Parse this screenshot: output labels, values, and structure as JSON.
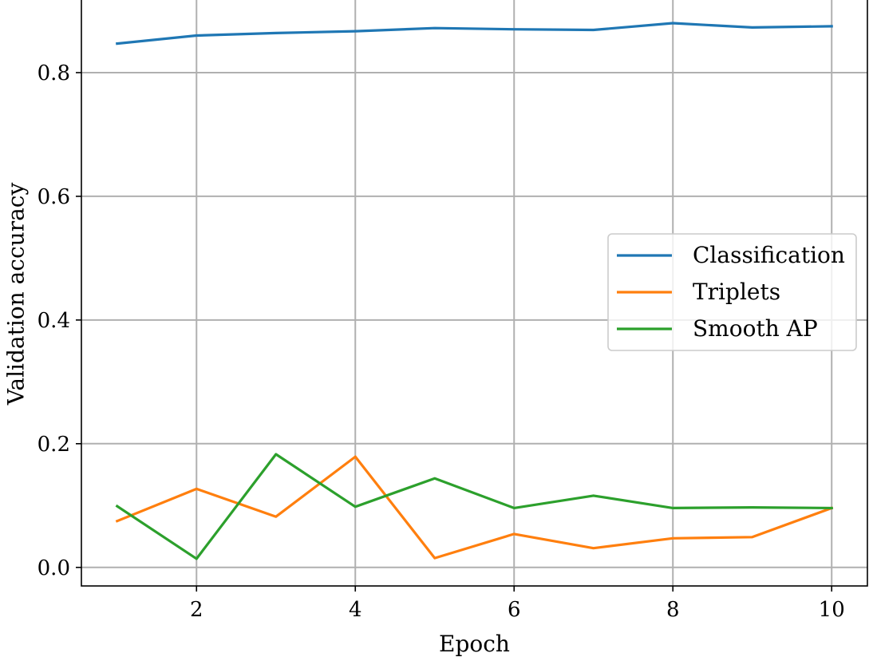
{
  "chart_data": {
    "type": "line",
    "title": "",
    "xlabel": "Epoch",
    "ylabel": "Validation accuracy",
    "xlim": [
      0.55,
      10.45
    ],
    "ylim": [
      -0.03,
      0.92
    ],
    "xticks": [
      2,
      4,
      6,
      8,
      10
    ],
    "xtick_labels": [
      "2",
      "4",
      "6",
      "8",
      "10"
    ],
    "yticks": [
      0.0,
      0.2,
      0.4,
      0.6,
      0.8
    ],
    "ytick_labels": [
      "0.0",
      "0.2",
      "0.4",
      "0.6",
      "0.8"
    ],
    "grid": true,
    "legend_position": "center-right",
    "x": [
      1,
      2,
      3,
      4,
      5,
      6,
      7,
      8,
      9,
      10
    ],
    "series": [
      {
        "name": "Classification",
        "color": "#1f77b4",
        "values": [
          0.847,
          0.86,
          0.864,
          0.867,
          0.872,
          0.87,
          0.869,
          0.88,
          0.873,
          0.875
        ]
      },
      {
        "name": "Triplets",
        "color": "#ff7f0e",
        "values": [
          0.075,
          0.127,
          0.082,
          0.179,
          0.015,
          0.054,
          0.031,
          0.047,
          0.049,
          0.096
        ]
      },
      {
        "name": "Smooth AP",
        "color": "#2ca02c",
        "values": [
          0.099,
          0.014,
          0.183,
          0.098,
          0.144,
          0.096,
          0.116,
          0.096,
          0.097,
          0.096
        ]
      }
    ]
  }
}
